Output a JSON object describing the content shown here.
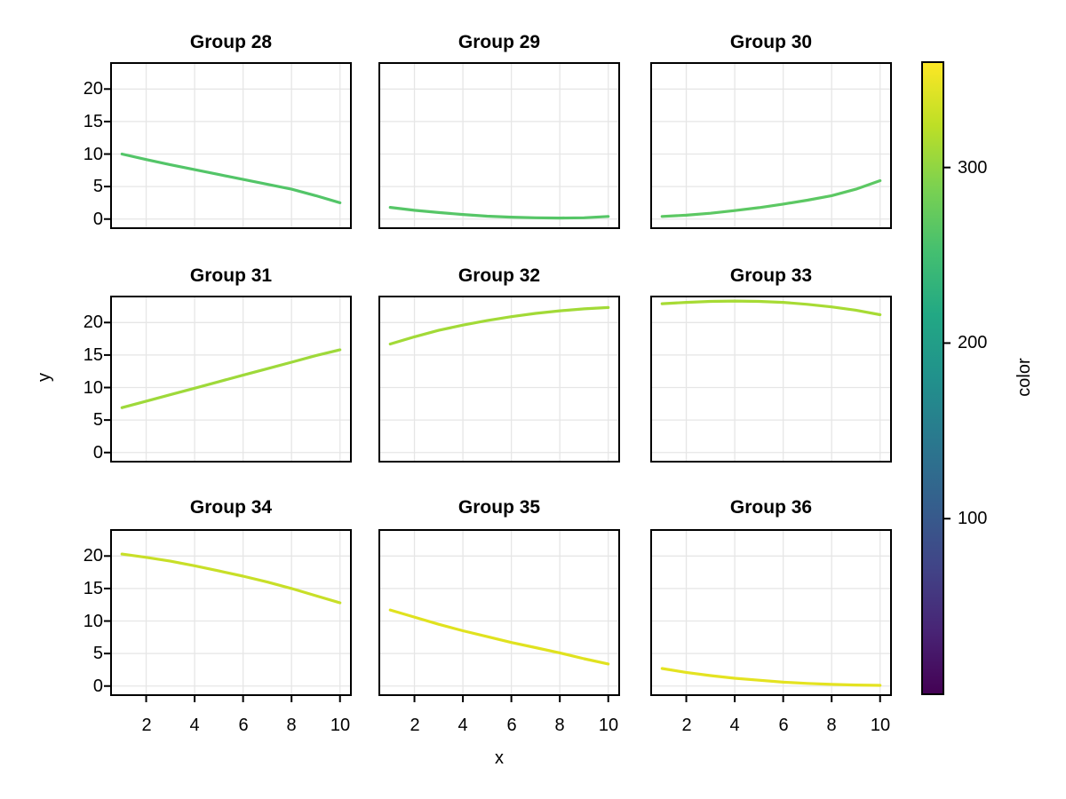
{
  "figure": {
    "background": "#ffffff"
  },
  "chart_data": {
    "type": "line",
    "layout": "3x3 facet grid with shared axes and right-side colorbar",
    "xlabel": "x",
    "ylabel": "y",
    "x": [
      1,
      2,
      3,
      4,
      5,
      6,
      7,
      8,
      9,
      10
    ],
    "axes": {
      "x_range": [
        0.55,
        10.45
      ],
      "y_range": [
        -1.4,
        24
      ],
      "x_ticks": [
        2,
        4,
        6,
        8,
        10
      ],
      "x_tick_labels": [
        "2",
        "4",
        "6",
        "8",
        "10"
      ],
      "y_ticks": [
        0,
        5,
        10,
        15,
        20
      ],
      "y_tick_labels": [
        "0",
        "5",
        "10",
        "15",
        "20"
      ],
      "grid": "major-only",
      "grid_color": "#e6e6e6",
      "box_color": "#000000",
      "line_width": 3.2
    },
    "facets": [
      {
        "title": "Group 28",
        "color_value": 265,
        "line_color": "#53c568",
        "y": [
          10.0,
          9.15,
          8.35,
          7.6,
          6.85,
          6.1,
          5.35,
          4.6,
          3.6,
          2.5
        ]
      },
      {
        "title": "Group 29",
        "color_value": 268,
        "line_color": "#56c667",
        "y": [
          1.8,
          1.35,
          1.0,
          0.7,
          0.45,
          0.3,
          0.2,
          0.15,
          0.2,
          0.4
        ]
      },
      {
        "title": "Group 30",
        "color_value": 272,
        "line_color": "#5cc863",
        "y": [
          0.4,
          0.6,
          0.9,
          1.3,
          1.75,
          2.3,
          2.9,
          3.6,
          4.6,
          5.9
        ]
      },
      {
        "title": "Group 31",
        "color_value": 305,
        "line_color": "#9ed93a",
        "y": [
          6.9,
          7.9,
          8.9,
          9.9,
          10.9,
          11.9,
          12.9,
          13.9,
          14.9,
          15.8
        ]
      },
      {
        "title": "Group 32",
        "color_value": 308,
        "line_color": "#a2da37",
        "y": [
          16.7,
          17.8,
          18.8,
          19.6,
          20.3,
          20.9,
          21.4,
          21.8,
          22.1,
          22.3
        ]
      },
      {
        "title": "Group 33",
        "color_value": 311,
        "line_color": "#a7db34",
        "y": [
          22.9,
          23.1,
          23.25,
          23.3,
          23.25,
          23.1,
          22.8,
          22.4,
          21.9,
          21.2
        ]
      },
      {
        "title": "Group 34",
        "color_value": 330,
        "line_color": "#c8df28",
        "y": [
          20.3,
          19.8,
          19.2,
          18.5,
          17.7,
          16.9,
          16.0,
          15.0,
          13.9,
          12.8
        ]
      },
      {
        "title": "Group 35",
        "color_value": 342,
        "line_color": "#e0e21f",
        "y": [
          11.7,
          10.6,
          9.5,
          8.5,
          7.6,
          6.7,
          5.9,
          5.1,
          4.2,
          3.4
        ]
      },
      {
        "title": "Group 36",
        "color_value": 346,
        "line_color": "#e4e321",
        "y": [
          2.7,
          2.1,
          1.6,
          1.2,
          0.9,
          0.6,
          0.4,
          0.25,
          0.15,
          0.1
        ]
      }
    ],
    "colorbar": {
      "label": "color",
      "position": "right",
      "domain": [
        0,
        360
      ],
      "ticks": [
        100,
        200,
        300
      ],
      "tick_labels": [
        "100",
        "200",
        "300"
      ],
      "gradient": [
        {
          "t": 0.0,
          "color": "#440154"
        },
        {
          "t": 0.1,
          "color": "#482475"
        },
        {
          "t": 0.2,
          "color": "#414487"
        },
        {
          "t": 0.3,
          "color": "#355f8d"
        },
        {
          "t": 0.4,
          "color": "#2a788e"
        },
        {
          "t": 0.5,
          "color": "#21918c"
        },
        {
          "t": 0.6,
          "color": "#22a884"
        },
        {
          "t": 0.7,
          "color": "#44bf70"
        },
        {
          "t": 0.8,
          "color": "#7ad151"
        },
        {
          "t": 0.9,
          "color": "#bddf26"
        },
        {
          "t": 1.0,
          "color": "#fde725"
        }
      ]
    }
  }
}
